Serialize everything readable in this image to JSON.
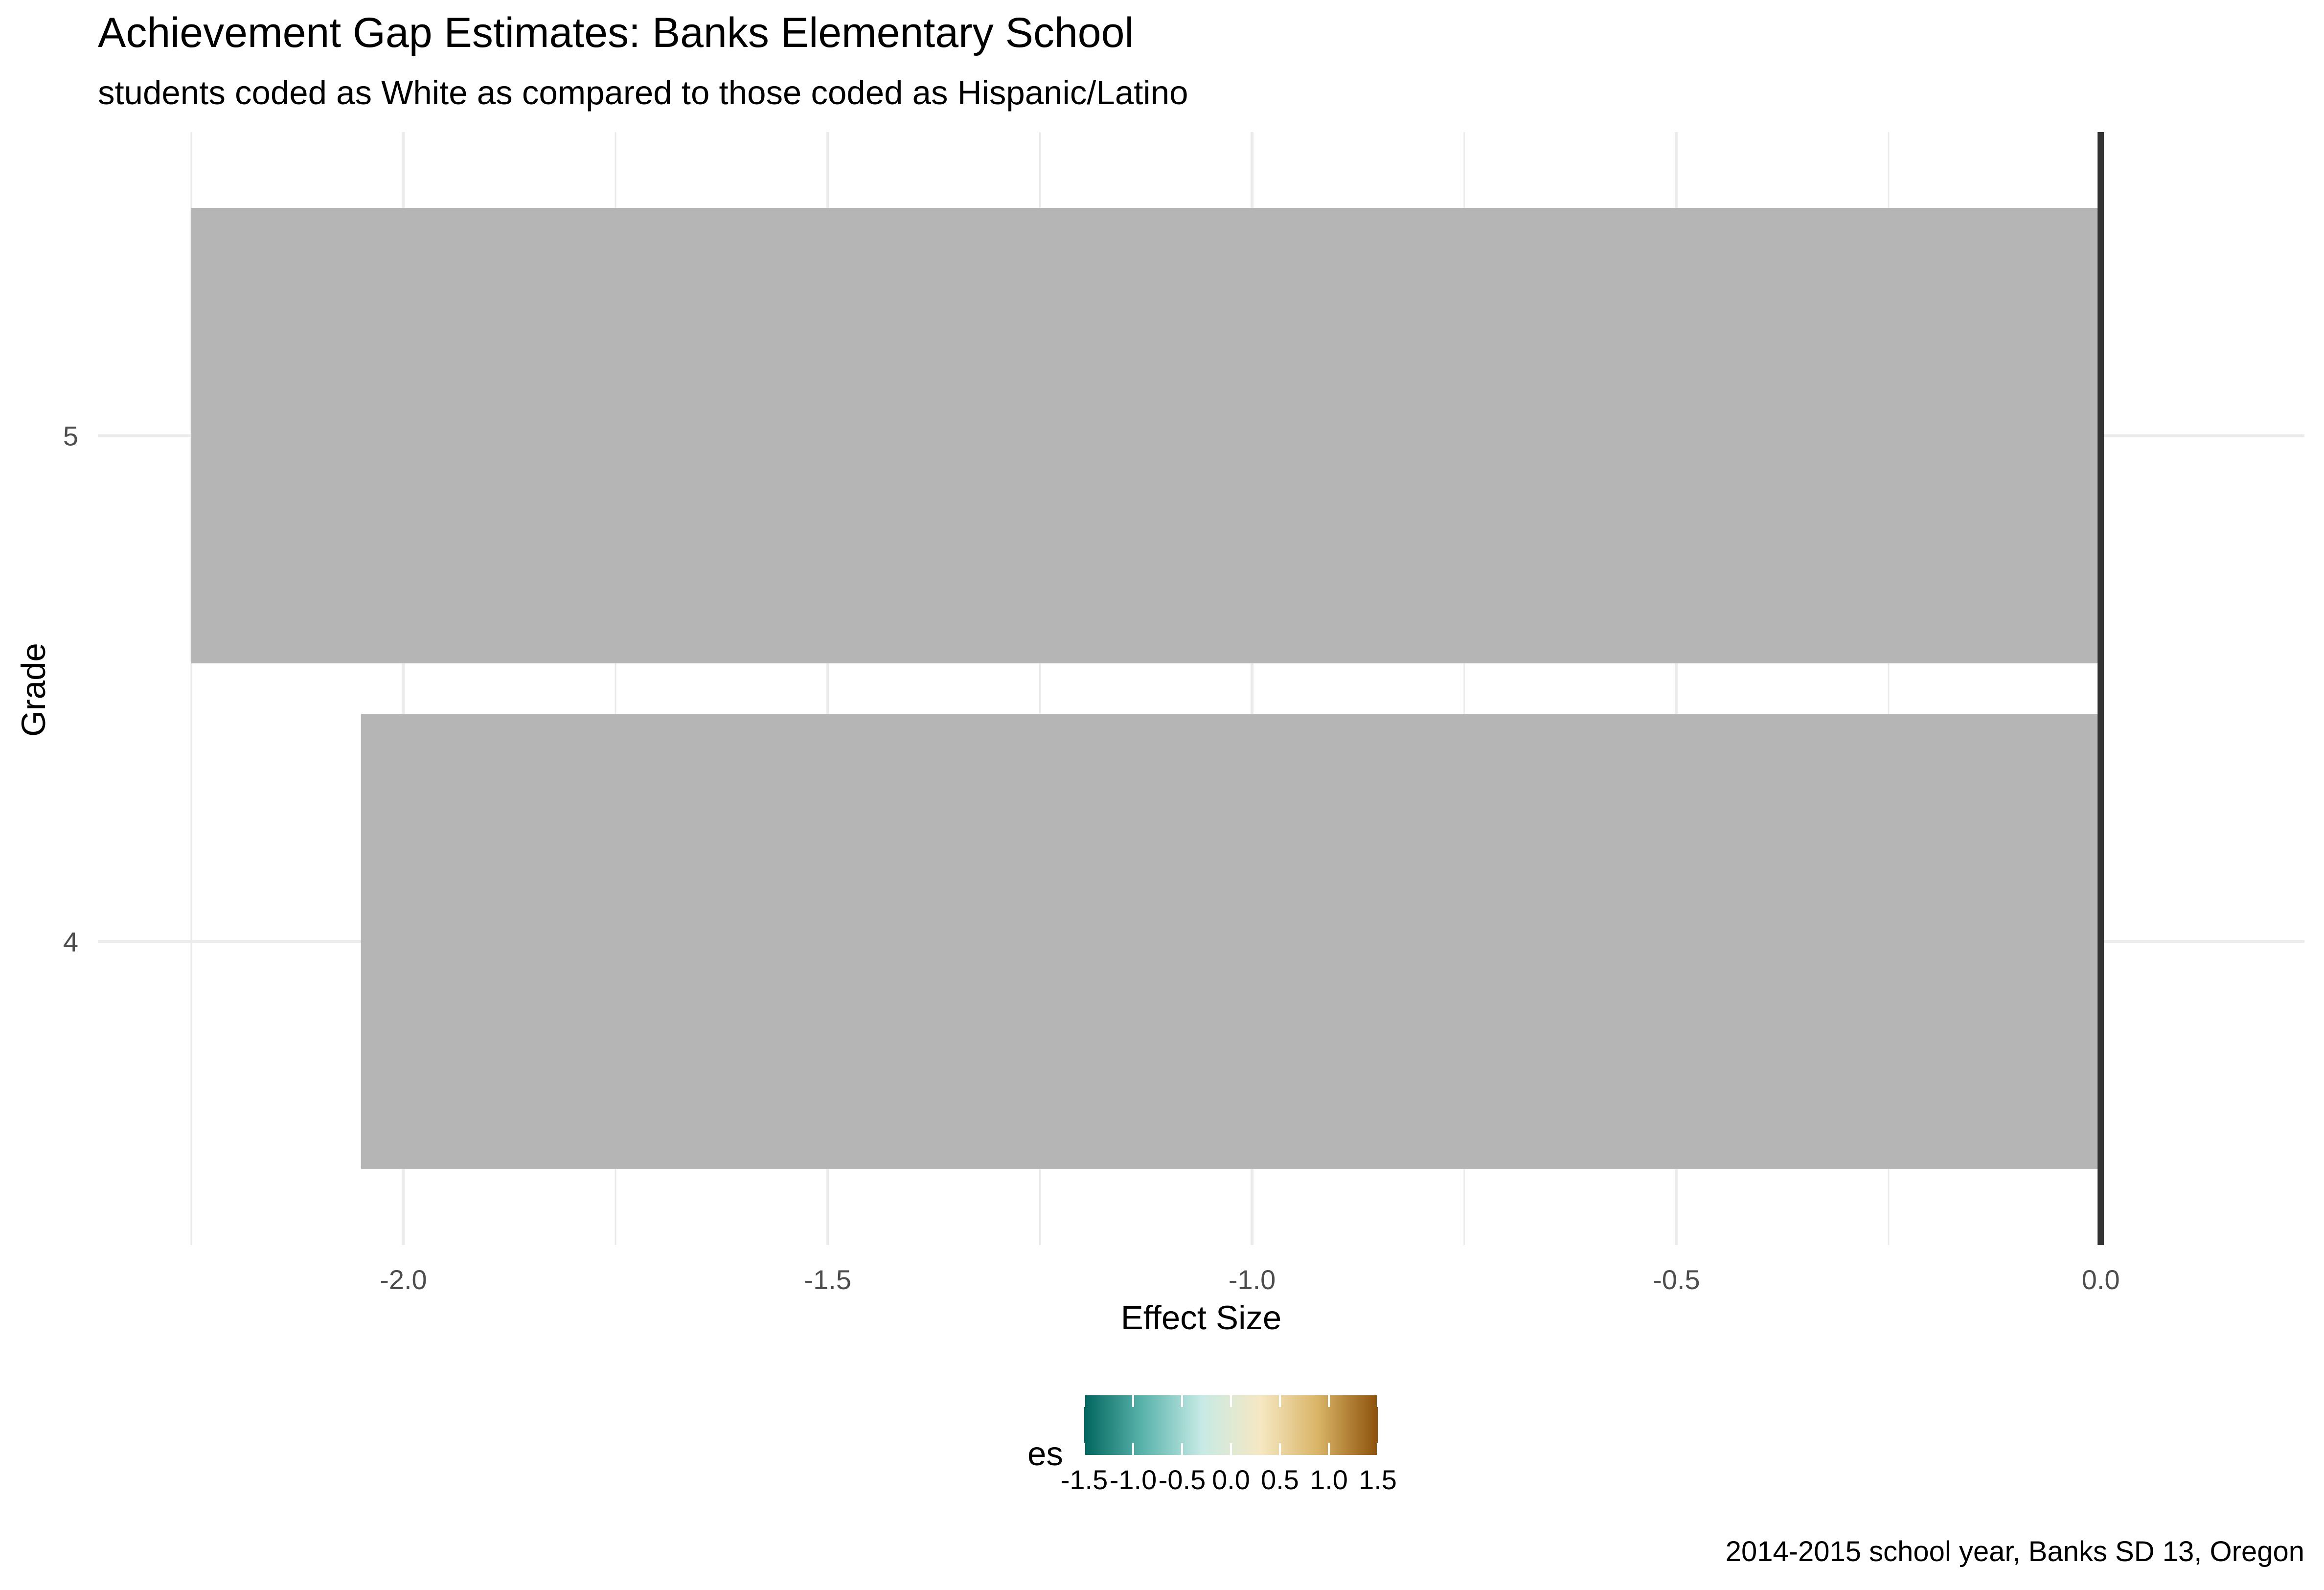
{
  "chart_data": {
    "type": "bar",
    "orientation": "horizontal",
    "title": "Achievement Gap Estimates: Banks Elementary School",
    "subtitle": "students coded as White as compared to those coded as Hispanic/Latino",
    "caption": "2014-2015 school year, Banks SD 13, Oregon",
    "xlabel": "Effect Size",
    "ylabel": "Grade",
    "categories": [
      "4",
      "5"
    ],
    "values": [
      -2.05,
      -2.25
    ],
    "xlim": [
      -2.25,
      0.0
    ],
    "xticks": [
      -2.0,
      -1.5,
      -1.0,
      -0.5,
      0.0
    ],
    "xtick_labels": [
      "-2.0",
      "-1.5",
      "-1.0",
      "-0.5",
      "0.0"
    ],
    "bar_color": "#b3b3b3",
    "reference_line": 0.0,
    "grid": true,
    "legend": {
      "title": "es",
      "position": "bottom",
      "type": "colorbar",
      "range": [
        -1.5,
        1.5
      ],
      "ticks": [
        -1.5,
        -1.0,
        -0.5,
        0.0,
        0.5,
        1.0,
        1.5
      ],
      "tick_labels": [
        "-1.5",
        "-1.0",
        "-0.5",
        "0.0",
        "0.5",
        "1.0",
        "1.5"
      ],
      "colors": [
        "#01665e",
        "#5ab4ac",
        "#c7eae5",
        "#f6e8c3",
        "#d8b365",
        "#8c510a"
      ]
    }
  }
}
